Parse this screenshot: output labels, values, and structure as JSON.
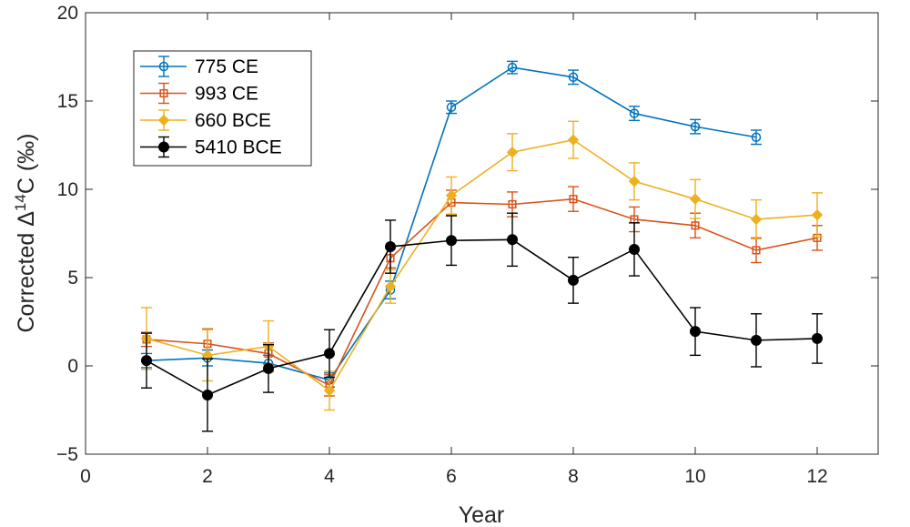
{
  "chart_data": {
    "type": "line",
    "title": "",
    "xlabel": "Year",
    "ylabel_prefix": "Corrected Δ",
    "ylabel_superscript": "14",
    "ylabel_suffix": "C (‰)",
    "xlim": [
      0,
      13
    ],
    "ylim": [
      -5,
      20
    ],
    "xticks": [
      0,
      2,
      4,
      6,
      8,
      10,
      12
    ],
    "yticks": [
      -5,
      0,
      5,
      10,
      15,
      20
    ],
    "xtick_labels": [
      "0",
      "2",
      "4",
      "6",
      "8",
      "10",
      "12"
    ],
    "ytick_labels": [
      "−5",
      "0",
      "5",
      "10",
      "15",
      "20"
    ],
    "grid": false,
    "legend_position": "top-left",
    "series": [
      {
        "name": "775 CE",
        "color": "#0072BD",
        "marker": "circle-open",
        "x": [
          1,
          2,
          3,
          4,
          5,
          6,
          7,
          8,
          9,
          10,
          11
        ],
        "y": [
          0.3,
          0.45,
          0.15,
          -0.8,
          4.3,
          14.65,
          16.9,
          16.35,
          14.3,
          13.55,
          12.95
        ],
        "err": [
          0.4,
          0.45,
          0.45,
          0.4,
          0.5,
          0.35,
          0.35,
          0.4,
          0.4,
          0.4,
          0.4
        ]
      },
      {
        "name": "993 CE",
        "color": "#D95319",
        "marker": "square-open",
        "x": [
          1,
          2,
          3,
          4,
          5,
          6,
          7,
          8,
          9,
          10,
          11,
          12
        ],
        "y": [
          1.5,
          1.25,
          0.7,
          -1.1,
          6.1,
          9.25,
          9.15,
          9.45,
          8.3,
          7.95,
          6.55,
          7.25
        ],
        "err": [
          0.4,
          0.85,
          0.6,
          0.6,
          0.55,
          0.7,
          0.7,
          0.7,
          0.7,
          0.7,
          0.7,
          0.7
        ]
      },
      {
        "name": "660 BCE",
        "color": "#EDB120",
        "marker": "diamond",
        "x": [
          1,
          2,
          3,
          4,
          5,
          6,
          7,
          8,
          9,
          10,
          11,
          12
        ],
        "y": [
          1.55,
          0.6,
          1.1,
          -1.4,
          4.5,
          9.65,
          12.1,
          12.8,
          10.45,
          9.45,
          8.3,
          8.55
        ],
        "err": [
          1.75,
          1.45,
          1.45,
          1.1,
          0.95,
          1.05,
          1.05,
          1.05,
          1.05,
          1.1,
          1.1,
          1.25
        ]
      },
      {
        "name": "5410 BCE",
        "color": "#000000",
        "marker": "circle-filled",
        "x": [
          1,
          2,
          3,
          4,
          5,
          6,
          7,
          8,
          9,
          10,
          11,
          12
        ],
        "y": [
          0.3,
          -1.65,
          -0.15,
          0.7,
          6.75,
          7.1,
          7.15,
          4.85,
          6.6,
          1.95,
          1.45,
          1.55
        ],
        "err": [
          1.55,
          2.05,
          1.35,
          1.35,
          1.5,
          1.4,
          1.5,
          1.3,
          1.5,
          1.35,
          1.5,
          1.4
        ]
      }
    ]
  }
}
